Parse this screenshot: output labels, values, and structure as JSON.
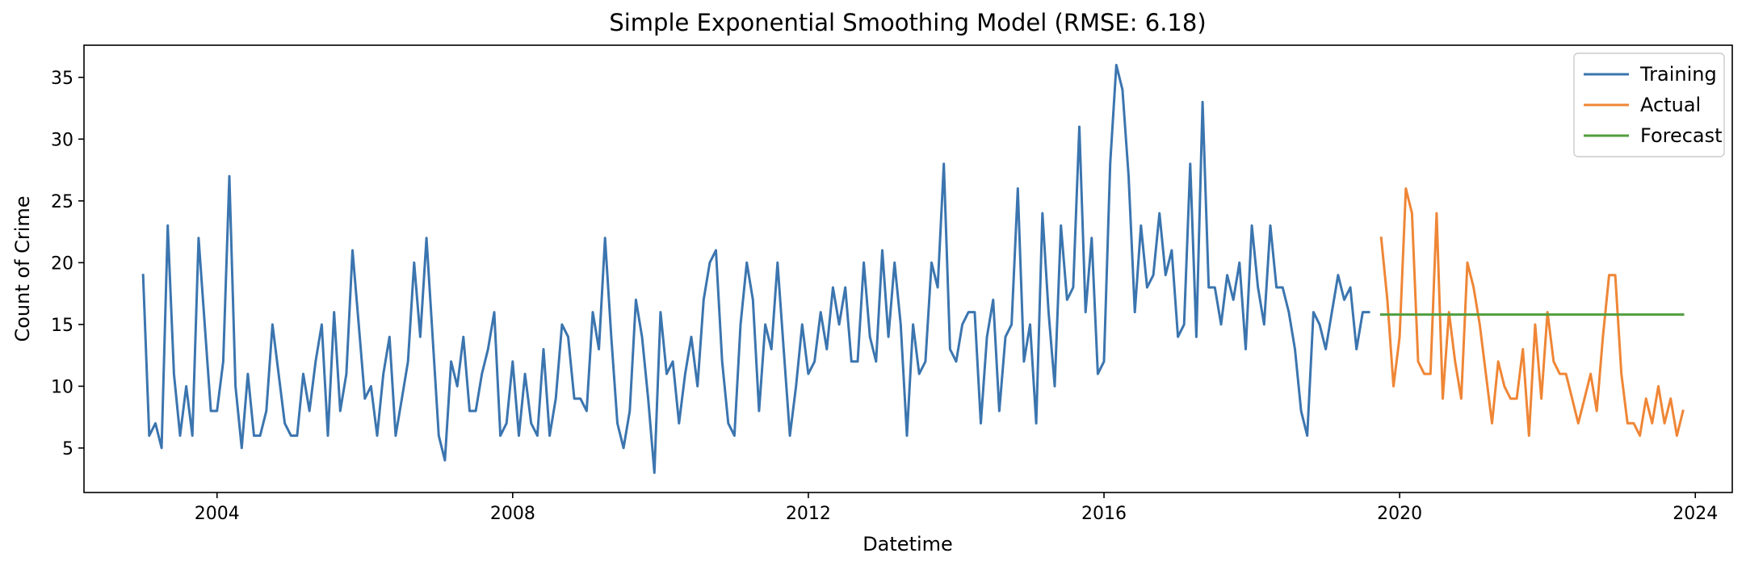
{
  "chart_data": {
    "type": "line",
    "title": "Simple Exponential Smoothing Model (RMSE: 6.18)",
    "xlabel": "Datetime",
    "ylabel": "Count of Crime",
    "xlim": [
      2002.2,
      2024.5
    ],
    "ylim": [
      1.4,
      37.6
    ],
    "x_ticks": [
      2004,
      2008,
      2012,
      2016,
      2020,
      2024
    ],
    "y_ticks": [
      5,
      10,
      15,
      20,
      25,
      30,
      35
    ],
    "grid": false,
    "legend_position": "top-right",
    "series": [
      {
        "name": "Training",
        "color": "#3b75af",
        "x_start": 2003.0,
        "x_step": 0.0833333,
        "values": [
          19,
          6,
          7,
          5,
          23,
          11,
          6,
          10,
          6,
          22,
          15,
          8,
          8,
          12,
          27,
          10,
          5,
          11,
          6,
          6,
          8,
          15,
          11,
          7,
          6,
          6,
          11,
          8,
          12,
          15,
          6,
          16,
          8,
          11,
          21,
          15,
          9,
          10,
          6,
          11,
          14,
          6,
          9,
          12,
          20,
          14,
          22,
          14,
          6,
          4,
          12,
          10,
          14,
          8,
          8,
          11,
          13,
          16,
          6,
          7,
          12,
          6,
          11,
          7,
          6,
          13,
          6,
          9,
          15,
          14,
          9,
          9,
          8,
          16,
          13,
          22,
          14,
          7,
          5,
          8,
          17,
          14,
          9,
          3,
          16,
          11,
          12,
          7,
          11,
          14,
          10,
          17,
          20,
          21,
          12,
          7,
          6,
          15,
          20,
          17,
          8,
          15,
          13,
          20,
          13,
          6,
          10,
          15,
          11,
          12,
          16,
          13,
          18,
          15,
          18,
          12,
          12,
          20,
          14,
          12,
          21,
          14,
          20,
          15,
          6,
          15,
          11,
          12,
          20,
          18,
          28,
          13,
          12,
          15,
          16,
          16,
          7,
          14,
          17,
          8,
          14,
          15,
          26,
          12,
          15,
          7,
          24,
          16,
          10,
          23,
          17,
          18,
          31,
          16,
          22,
          11,
          12,
          28,
          36,
          34,
          27,
          16,
          23,
          18,
          19,
          24,
          19,
          21,
          14,
          15,
          28,
          14,
          33,
          18,
          18,
          15,
          19,
          17,
          20,
          13,
          23,
          18,
          15,
          23,
          18,
          18,
          16,
          13,
          8,
          6,
          16,
          15,
          13,
          16,
          19,
          17,
          18,
          13,
          16,
          16
        ]
      },
      {
        "name": "Actual",
        "color": "#ef8636",
        "x_start": 2019.75,
        "x_step": 0.0833333,
        "values": [
          22,
          17,
          10,
          14,
          26,
          24,
          12,
          11,
          11,
          24,
          9,
          16,
          12,
          9,
          20,
          18,
          15,
          11,
          7,
          12,
          10,
          9,
          9,
          13,
          6,
          15,
          9,
          16,
          12,
          11,
          11,
          9,
          7,
          9,
          11,
          8,
          14,
          19,
          19,
          11,
          7,
          7,
          6,
          9,
          7,
          10,
          7,
          9,
          6,
          8
        ]
      },
      {
        "name": "Forecast",
        "color": "#519e3e",
        "x_start": 2019.75,
        "x_step": 0.0833333,
        "values": [
          15.8,
          15.8,
          15.8,
          15.8,
          15.8,
          15.8,
          15.8,
          15.8,
          15.8,
          15.8,
          15.8,
          15.8,
          15.8,
          15.8,
          15.8,
          15.8,
          15.8,
          15.8,
          15.8,
          15.8,
          15.8,
          15.8,
          15.8,
          15.8,
          15.8,
          15.8,
          15.8,
          15.8,
          15.8,
          15.8,
          15.8,
          15.8,
          15.8,
          15.8,
          15.8,
          15.8,
          15.8,
          15.8,
          15.8,
          15.8,
          15.8,
          15.8,
          15.8,
          15.8,
          15.8,
          15.8,
          15.8,
          15.8,
          15.8,
          15.8
        ]
      }
    ]
  }
}
